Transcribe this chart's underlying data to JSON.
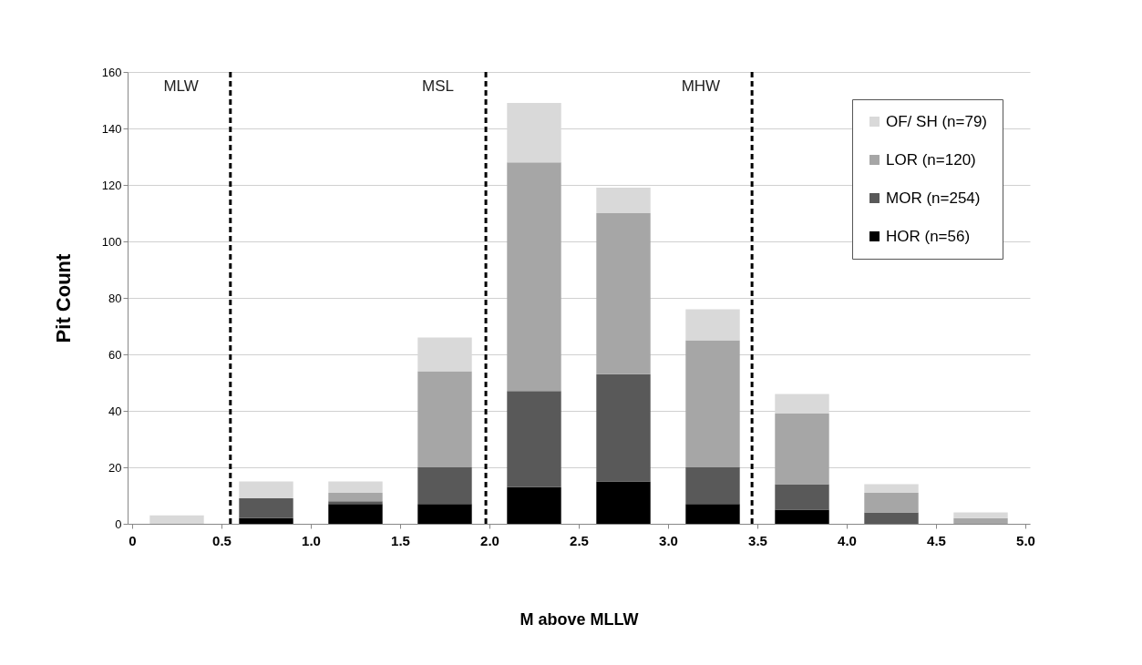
{
  "chart_data": {
    "type": "bar",
    "stacked": true,
    "xlabel": "M above MLLW",
    "ylabel": "Pit Count",
    "x": [
      0.25,
      0.75,
      1.25,
      1.75,
      2.25,
      2.75,
      3.25,
      3.75,
      4.25,
      4.75
    ],
    "series": [
      {
        "name": "HOR (n=56)",
        "color": "#000000",
        "values": [
          0,
          2,
          7,
          7,
          13,
          15,
          7,
          5,
          0,
          0
        ]
      },
      {
        "name": "MOR (n=254)",
        "color": "#595959",
        "values": [
          0,
          7,
          1,
          13,
          34,
          38,
          13,
          9,
          4,
          0
        ]
      },
      {
        "name": "LOR (n=120)",
        "color": "#a6a6a6",
        "values": [
          0,
          0,
          3,
          34,
          81,
          57,
          45,
          25,
          7,
          2
        ]
      },
      {
        "name": "OF/ SH (n=79)",
        "color": "#d9d9d9",
        "values": [
          3,
          6,
          4,
          12,
          21,
          9,
          11,
          7,
          3,
          2
        ]
      }
    ],
    "xlim": [
      0,
      5
    ],
    "xticks": [
      0,
      0.5,
      {
        "value": 1,
        "label": "1.0"
      },
      1.5,
      {
        "value": 2,
        "label": "2.0"
      },
      2.5,
      {
        "value": 3,
        "label": "3.0"
      },
      3.5,
      {
        "value": 4,
        "label": "4.0"
      },
      4.5,
      {
        "value": 5,
        "label": "5.0"
      }
    ],
    "ylim": [
      0,
      160
    ],
    "yticks": [
      0,
      20,
      40,
      60,
      80,
      100,
      120,
      140,
      160
    ],
    "grid": "y",
    "legend": "top right",
    "ref_lines": [
      {
        "axis": "x",
        "value": 0.55,
        "label": "MLW",
        "line_style": "dashed",
        "color": "#000000"
      },
      {
        "axis": "x",
        "value": 1.98,
        "label": "MSL",
        "line_style": "dashed",
        "color": "#000000"
      },
      {
        "axis": "x",
        "value": 3.47,
        "label": "MHW",
        "line_style": "dashed",
        "color": "#000000"
      }
    ]
  }
}
